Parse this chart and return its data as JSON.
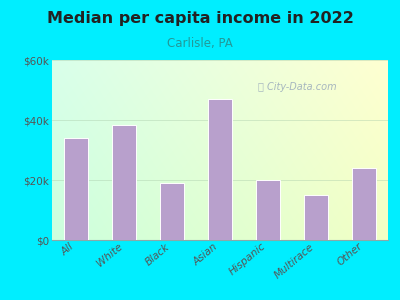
{
  "title": "Median per capita income in 2022",
  "subtitle": "Carlisle, PA",
  "categories": [
    "All",
    "White",
    "Black",
    "Asian",
    "Hispanic",
    "Multirace",
    "Other"
  ],
  "values": [
    34000,
    38500,
    19000,
    47000,
    20000,
    15000,
    24000
  ],
  "bar_color": "#b8a0cc",
  "bar_edge_color": "#ffffff",
  "background_color": "#00eeff",
  "plot_bg_topleft": "#cdf5ee",
  "plot_bg_topright": "#f0fff8",
  "plot_bg_bottom": "#e8fdf0",
  "title_color": "#222222",
  "subtitle_color": "#229999",
  "tick_color": "#555555",
  "ylim": [
    0,
    60000
  ],
  "yticks": [
    0,
    20000,
    40000,
    60000
  ],
  "ytick_labels": [
    "$0",
    "$20k",
    "$40k",
    "$60k"
  ],
  "watermark": "City-Data.com",
  "watermark_color": "#99aabb"
}
